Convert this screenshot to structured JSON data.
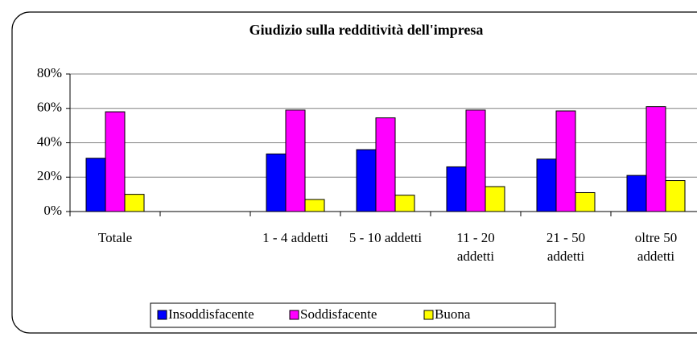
{
  "chart_data": {
    "type": "bar",
    "title": "Giudizio sulla redditività dell'impresa",
    "categories": [
      "Totale",
      null,
      "1 - 4 addetti",
      "5 - 10 addetti",
      "11 - 20 addetti",
      "21 - 50 addetti",
      "oltre 50 addetti"
    ],
    "series": [
      {
        "name": "Insoddisfacente",
        "color": "#0000ff",
        "values": [
          31,
          null,
          33.5,
          36,
          26,
          30.5,
          21
        ]
      },
      {
        "name": "Soddisfacente",
        "color": "#ff00ff",
        "values": [
          58,
          null,
          59,
          54.5,
          59,
          58.5,
          61
        ]
      },
      {
        "name": "Buona",
        "color": "#ffff00",
        "values": [
          10,
          null,
          7,
          9.5,
          14.5,
          11,
          18
        ]
      }
    ],
    "ylim": [
      0,
      80
    ],
    "yticks": [
      {
        "value": 0,
        "label": "0%"
      },
      {
        "value": 20,
        "label": "20%"
      },
      {
        "value": 40,
        "label": "40%"
      },
      {
        "value": 60,
        "label": "60%"
      },
      {
        "value": 80,
        "label": "80%"
      }
    ],
    "grid": true,
    "legend": "bottom"
  }
}
